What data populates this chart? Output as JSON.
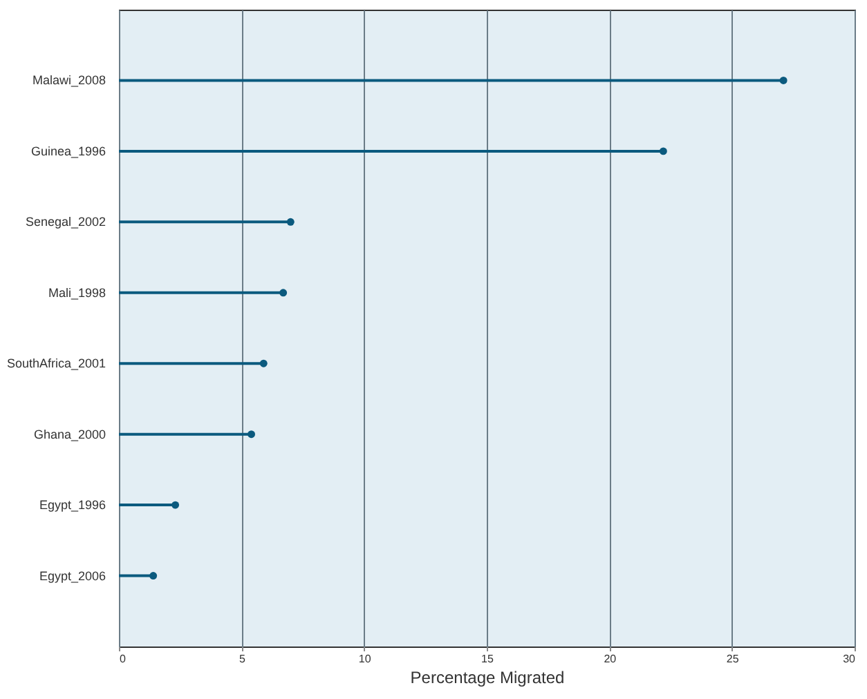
{
  "chart_data": {
    "type": "lollipop",
    "orientation": "horizontal",
    "xlabel": "Percentage Migrated",
    "categories": [
      "Malawi_2008",
      "Guinea_1996",
      "Senegal_2002",
      "Mali_1998",
      "SouthAfrica_2001",
      "Ghana_2000",
      "Egypt_1996",
      "Egypt_2006"
    ],
    "values": [
      27.1,
      22.2,
      7.0,
      6.7,
      5.9,
      5.4,
      2.3,
      1.4
    ],
    "color": "#0b5a7e",
    "xlim": [
      0,
      30
    ],
    "xticks": [
      0,
      5,
      10,
      15,
      20,
      25,
      30
    ],
    "grid": "x",
    "marker": "circle"
  }
}
